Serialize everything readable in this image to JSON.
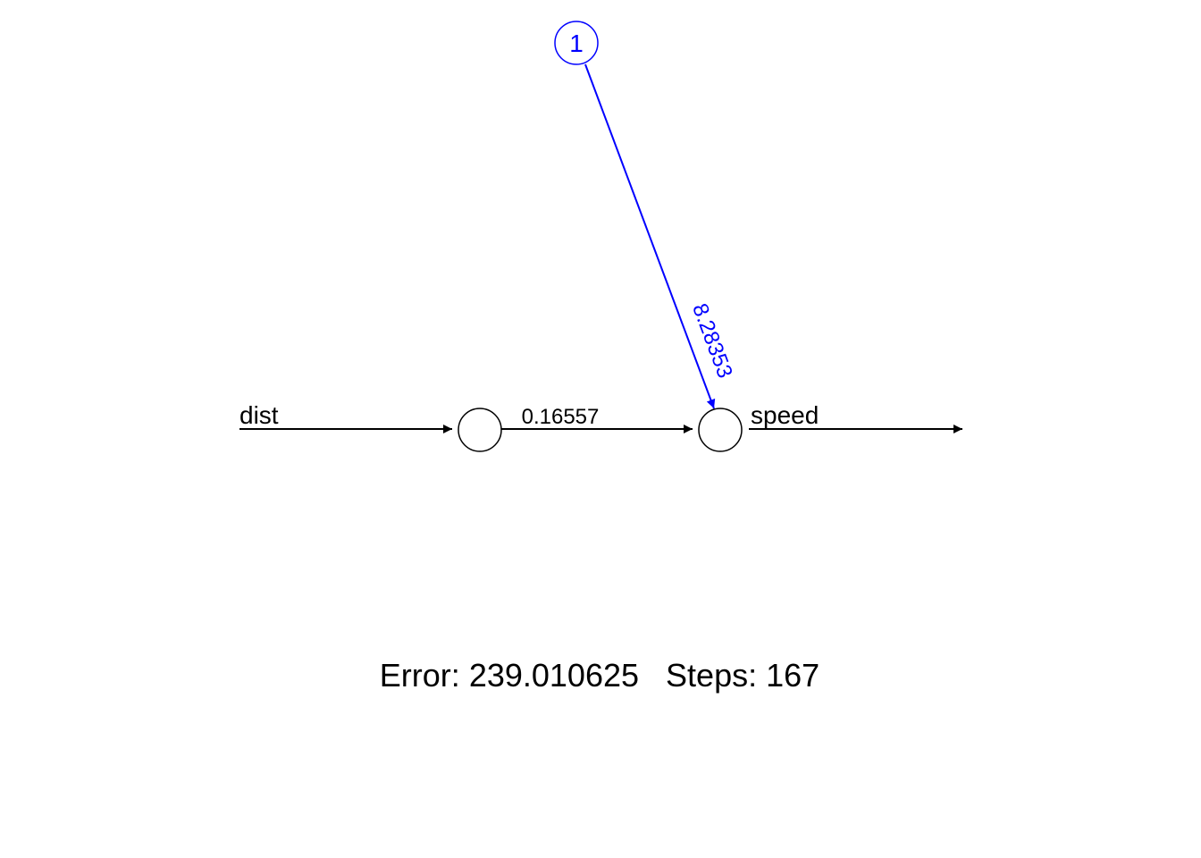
{
  "network": {
    "input_label": "dist",
    "output_label": "speed",
    "bias_node_label": "1",
    "input_to_output_weight": "0.16557",
    "bias_weight": "8.28353"
  },
  "footer": {
    "error_label": "Error:",
    "error_value": "239.010625",
    "steps_label": "Steps:",
    "steps_value": "167"
  },
  "colors": {
    "main": "#000000",
    "bias": "#0000ff"
  }
}
